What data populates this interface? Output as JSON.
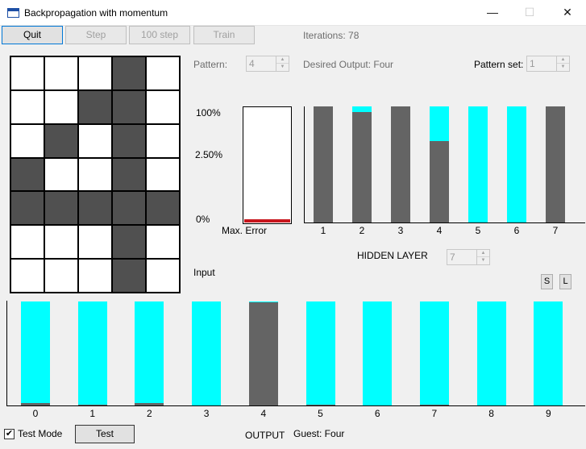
{
  "window": {
    "title": "Backpropagation with momentum",
    "minimize": "—",
    "maximize": "☐",
    "close": "✕"
  },
  "toolbar": {
    "quit": "Quit",
    "step": "Step",
    "step100": "100 step",
    "train": "Train"
  },
  "iterations_text": "Iterations: 78",
  "pattern": {
    "label": "Pattern:",
    "value": "4"
  },
  "desired_output": "Desired Output: Four",
  "pattern_set": {
    "label": "Pattern set:",
    "value": "1"
  },
  "input_grid": {
    "rows": [
      [
        0,
        0,
        0,
        1,
        0
      ],
      [
        0,
        0,
        1,
        1,
        0
      ],
      [
        0,
        1,
        0,
        1,
        0
      ],
      [
        1,
        0,
        0,
        1,
        0
      ],
      [
        1,
        1,
        1,
        1,
        1
      ],
      [
        0,
        0,
        0,
        1,
        0
      ],
      [
        0,
        0,
        0,
        1,
        0
      ]
    ],
    "on_color": "#505050",
    "off_color": "#ffffff"
  },
  "input_label": "Input",
  "error_scale": {
    "top": "100%",
    "mid": "2.50%",
    "bottom": "0%"
  },
  "max_error_label": "Max. Error",
  "max_error_fraction": 0.03,
  "hidden_layer": {
    "label": "HIDDEN LAYER",
    "spin_value": "7",
    "categories": [
      "1",
      "2",
      "3",
      "4",
      "5",
      "6",
      "7"
    ],
    "activations": [
      1.0,
      0.95,
      1.0,
      0.7,
      0.0,
      0.0,
      1.0
    ]
  },
  "output_layer": {
    "label": "OUTPUT",
    "guest": "Guest: Four",
    "categories": [
      "0",
      "1",
      "2",
      "3",
      "4",
      "5",
      "6",
      "7",
      "8",
      "9"
    ],
    "activations": [
      0.02,
      0.01,
      0.02,
      0.0,
      0.99,
      0.01,
      0.0,
      0.01,
      0.0,
      0.0
    ]
  },
  "save_button": "S",
  "load_button": "L",
  "test_mode": {
    "label": "Test Mode",
    "checked": "✔"
  },
  "test_button": "Test",
  "colors": {
    "inactive": "#00ffff",
    "active": "#646464",
    "error": "#c8161d"
  }
}
